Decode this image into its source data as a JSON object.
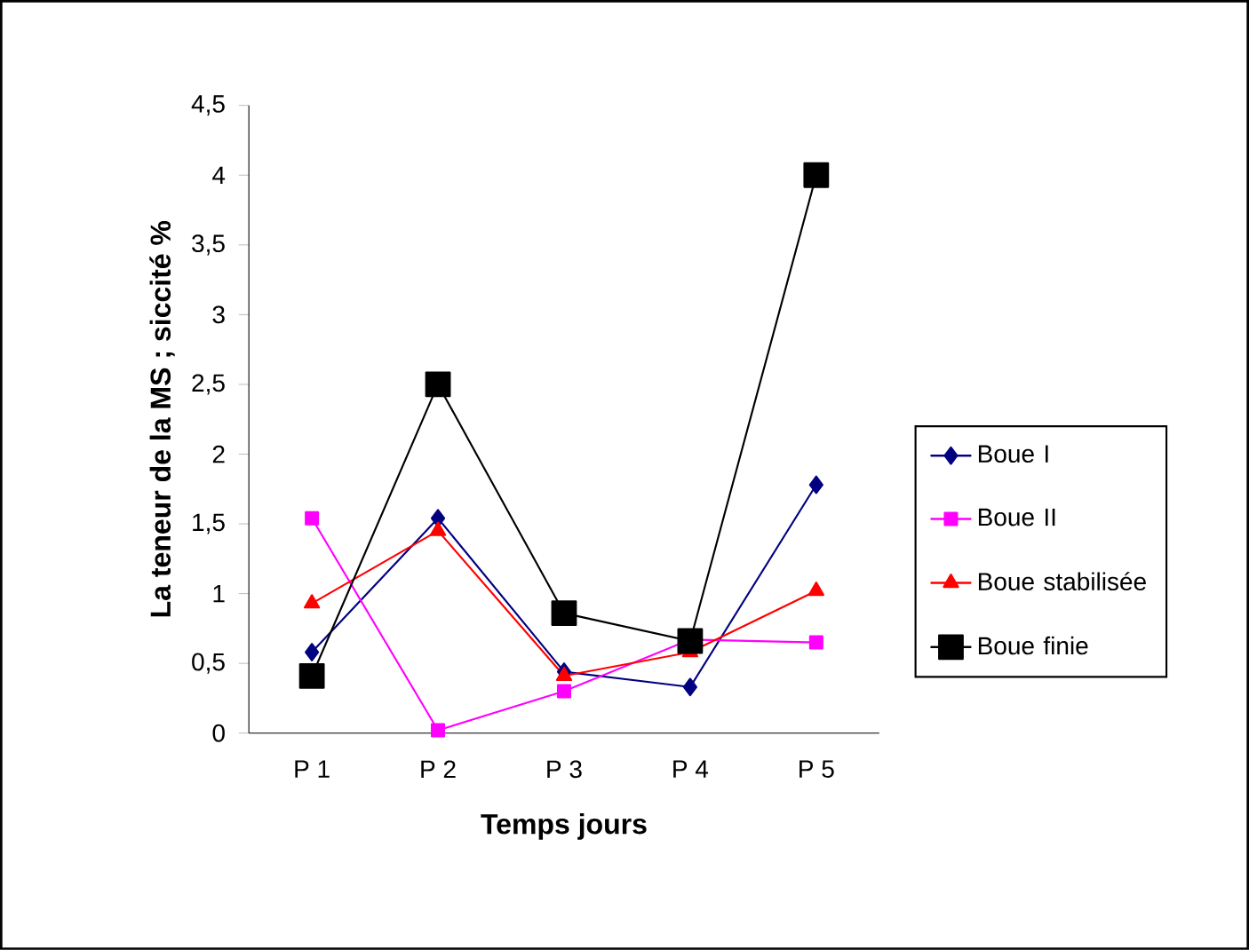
{
  "chart_data": {
    "type": "line",
    "xlabel": "Temps jours",
    "ylabel": "La teneur de la MS ; siccité %",
    "categories": [
      "P 1",
      "P 2",
      "P 3",
      "P 4",
      "P 5"
    ],
    "ylim": [
      0,
      4.5
    ],
    "yticks": [
      0,
      {
        "value": 0.5,
        "label": "0,5"
      },
      1,
      {
        "value": 1.5,
        "label": "1,5"
      },
      2,
      {
        "value": 2.5,
        "label": "2,5"
      },
      3,
      {
        "value": 3.5,
        "label": "3,5"
      },
      4,
      {
        "value": 4.5,
        "label": "4,5"
      }
    ],
    "grid": false,
    "legend": "right",
    "series": [
      {
        "name": "Boue I",
        "color": "#000080",
        "marker": "diamond",
        "values": [
          0.58,
          1.54,
          0.44,
          0.33,
          1.78
        ]
      },
      {
        "name": "Boue II",
        "color": "#ff00ff",
        "marker": "square",
        "values": [
          1.54,
          0.02,
          0.3,
          0.67,
          0.65
        ]
      },
      {
        "name": "Boue stabilisée",
        "color": "#ff0000",
        "marker": "triangle",
        "values": [
          0.93,
          1.45,
          0.41,
          0.58,
          1.02
        ]
      },
      {
        "name": "Boue finie",
        "color": "#000000",
        "marker": "square",
        "values": [
          0.41,
          2.5,
          0.86,
          0.66,
          4.0
        ]
      }
    ]
  }
}
